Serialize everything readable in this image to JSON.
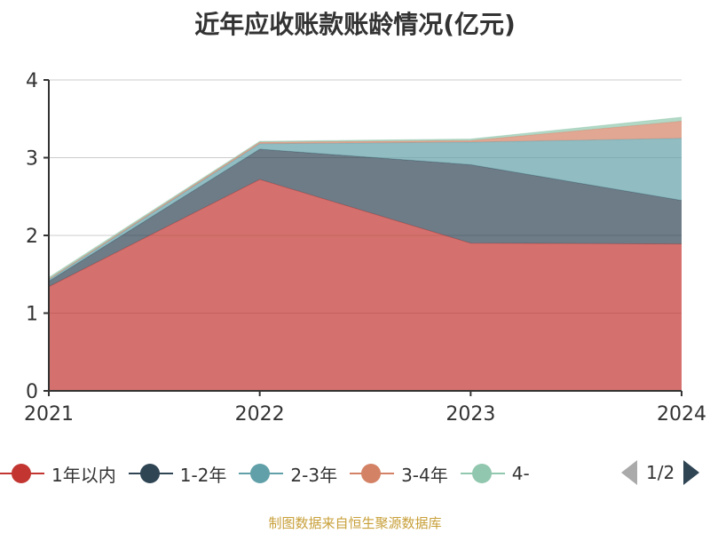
{
  "title": "近年应收账款账龄情况(亿元)",
  "source": "制图数据来自恒生聚源数据库",
  "pager": "1/2",
  "chart_data": {
    "type": "area",
    "stacked": true,
    "title": "近年应收账款账龄情况(亿元)",
    "categories": [
      "2021",
      "2022",
      "2023",
      "2024"
    ],
    "ylim": [
      0,
      4
    ],
    "yticks": [
      "0",
      "1",
      "2",
      "3",
      "4"
    ],
    "grid": true,
    "legend_position": "bottom",
    "series": [
      {
        "name": "1年以内",
        "color": "#c23531",
        "values": [
          1.34,
          2.72,
          1.9,
          1.89
        ]
      },
      {
        "name": "1-2年",
        "color": "#2f4554",
        "values": [
          0.07,
          0.39,
          1.01,
          0.56
        ]
      },
      {
        "name": "2-3年",
        "color": "#61a0a8",
        "values": [
          0.02,
          0.07,
          0.29,
          0.8
        ]
      },
      {
        "name": "3-4年",
        "color": "#d48265",
        "values": [
          0.01,
          0.02,
          0.02,
          0.22
        ]
      },
      {
        "name": "4-",
        "color": "#91c7ae",
        "values": [
          0.02,
          0.01,
          0.02,
          0.05
        ]
      }
    ]
  }
}
